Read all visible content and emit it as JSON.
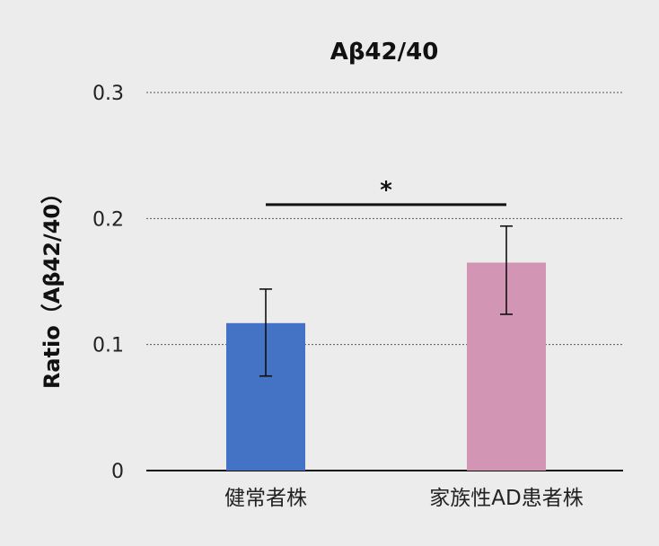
{
  "chart_data": {
    "type": "bar",
    "title": "Aβ42/40",
    "ylabel": "Ratio（Aβ42/40）",
    "xlabel": "",
    "categories": [
      "健常者株",
      "家族性AD患者株"
    ],
    "values": [
      0.117,
      0.165
    ],
    "error": [
      {
        "low": 0.075,
        "high": 0.144
      },
      {
        "low": 0.124,
        "high": 0.194
      }
    ],
    "colors": [
      "#4472c4",
      "#d395b4"
    ],
    "ylim": [
      0,
      0.3
    ],
    "yticks": [
      0,
      0.1,
      0.2,
      0.3
    ],
    "ytick_labels": [
      "0",
      "0.1",
      "0.2",
      "0.3"
    ],
    "grid": "horizontal dotted",
    "significance": {
      "between": [
        0,
        1
      ],
      "label": "*",
      "y": 0.211
    }
  }
}
